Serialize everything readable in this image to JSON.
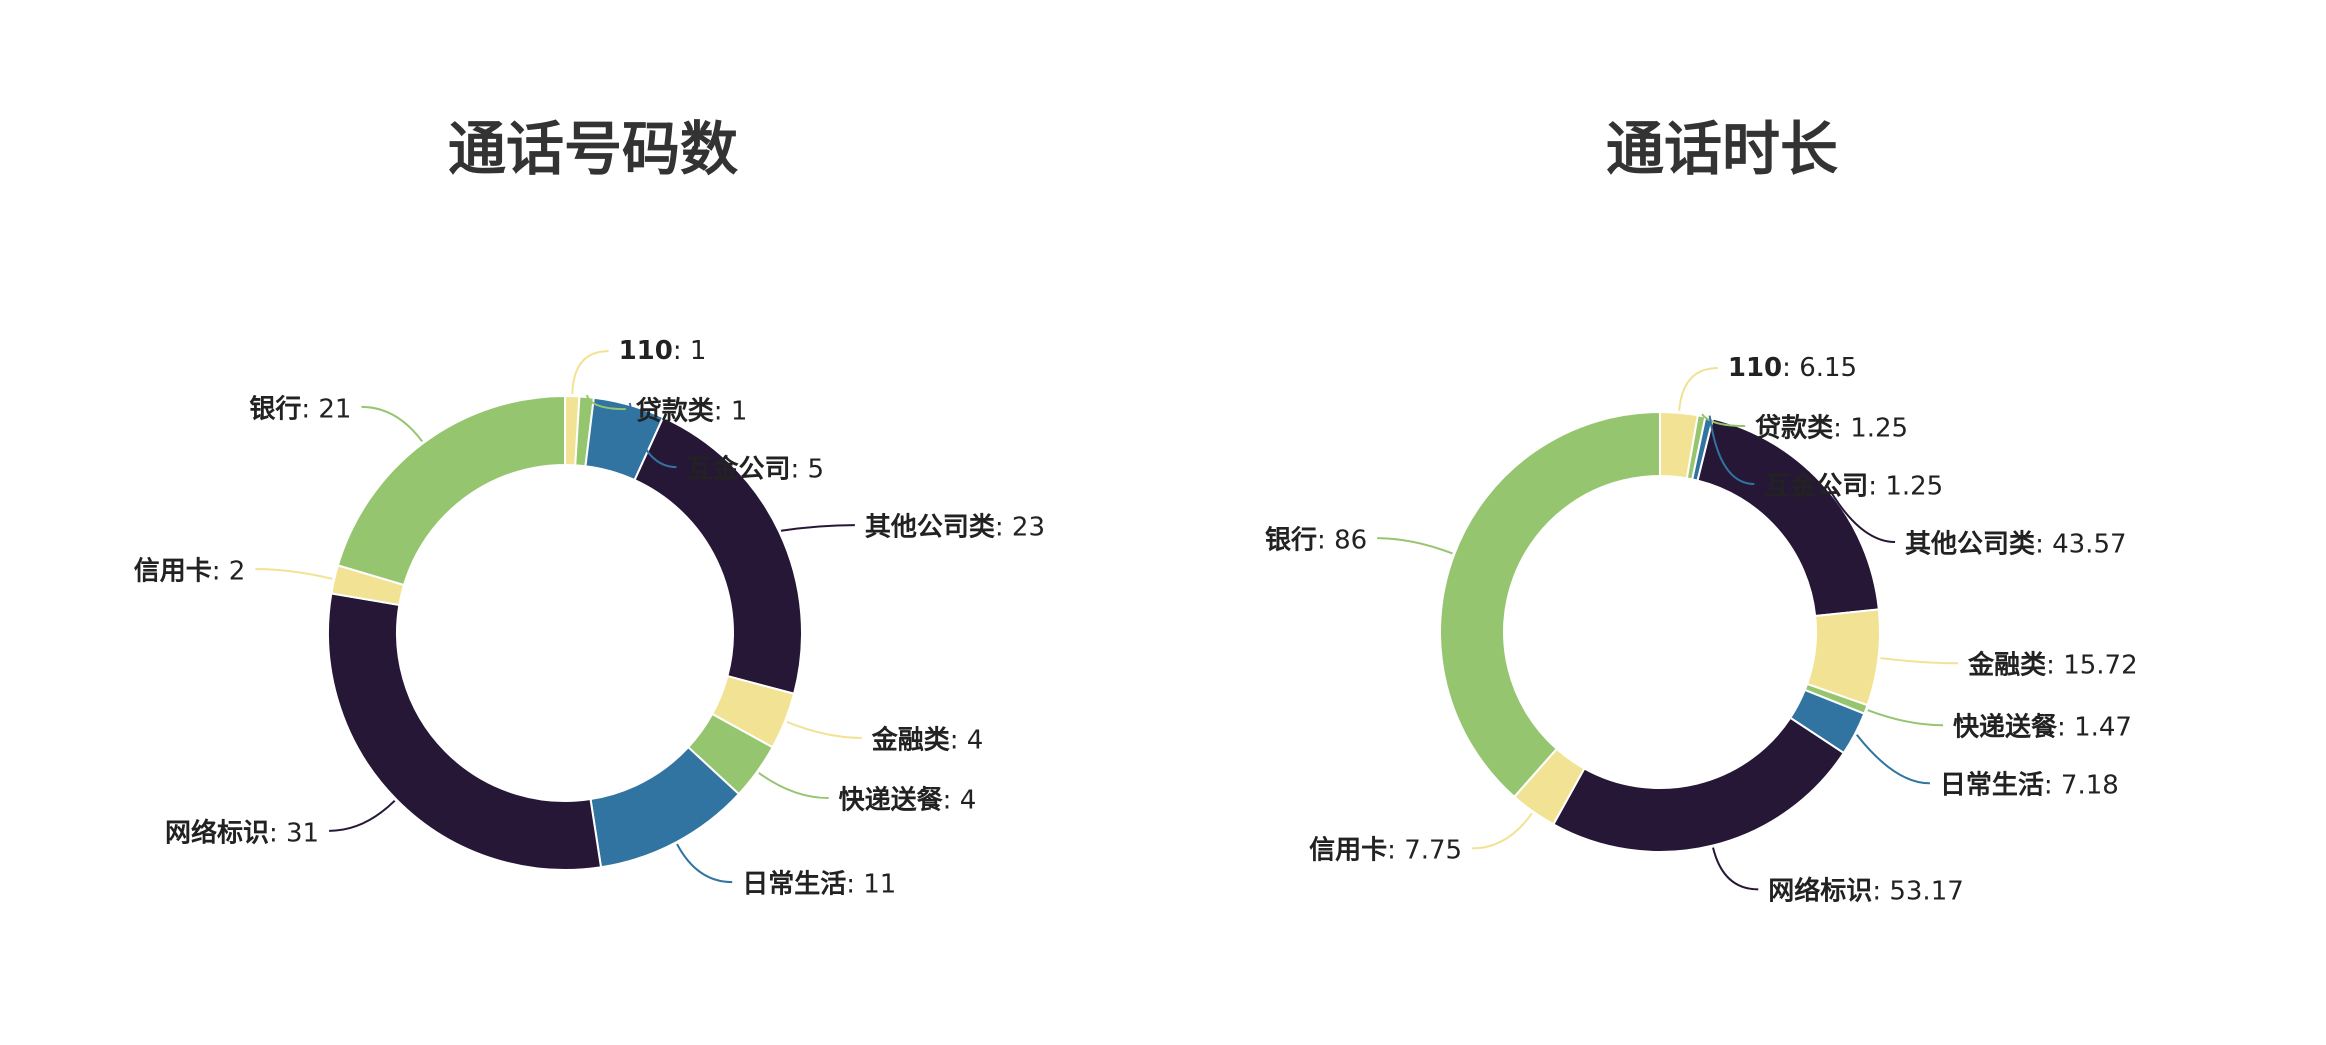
{
  "chart_data": [
    {
      "type": "pie",
      "title": "通话号码数",
      "categories": [
        "110",
        "贷款类",
        "互金公司",
        "其他公司类",
        "金融类",
        "快递送餐",
        "日常生活",
        "网络标识",
        "信用卡",
        "银行"
      ],
      "values": [
        1,
        1,
        5,
        23,
        4,
        4,
        11,
        31,
        2,
        21
      ],
      "colors": [
        "#f2e394",
        "#96c56f",
        "#3274a1",
        "#261737",
        "#f2e394",
        "#96c56f",
        "#3274a1",
        "#261737",
        "#f2e394",
        "#96c56f"
      ]
    },
    {
      "type": "pie",
      "title": "通话时长",
      "categories": [
        "110",
        "贷款类",
        "互金公司",
        "其他公司类",
        "金融类",
        "快递送餐",
        "日常生活",
        "网络标识",
        "信用卡",
        "银行"
      ],
      "values": [
        6.15,
        1.25,
        1.25,
        43.57,
        15.72,
        1.47,
        7.18,
        53.17,
        7.75,
        86
      ],
      "colors": [
        "#f2e394",
        "#96c56f",
        "#3274a1",
        "#261737",
        "#f2e394",
        "#96c56f",
        "#3274a1",
        "#261737",
        "#f2e394",
        "#96c56f"
      ]
    }
  ]
}
